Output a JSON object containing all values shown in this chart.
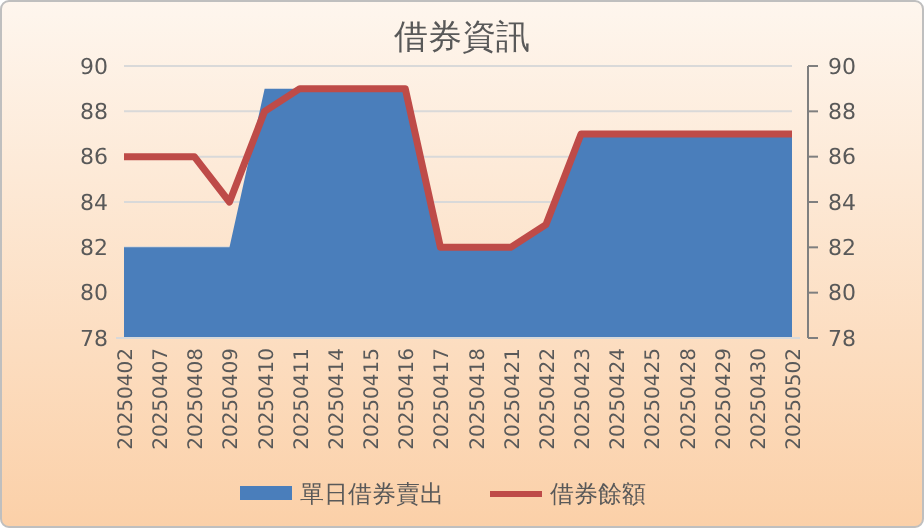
{
  "chart_data": {
    "type": "area",
    "title": "借券資訊",
    "categories": [
      "20250402",
      "20250407",
      "20250408",
      "20250409",
      "20250410",
      "20250411",
      "20250414",
      "20250415",
      "20250416",
      "20250417",
      "20250418",
      "20250421",
      "20250422",
      "20250423",
      "20250424",
      "20250425",
      "20250428",
      "20250429",
      "20250430",
      "20250502"
    ],
    "series": [
      {
        "name": "單日借券賣出",
        "color": "#4a7ebb",
        "values": [
          82,
          82,
          82,
          82,
          89,
          89,
          89,
          89,
          89,
          82,
          82,
          82,
          83,
          87,
          87,
          87,
          87,
          87,
          87,
          87
        ]
      },
      {
        "name": "借券餘額",
        "type": "line",
        "axis": "y2",
        "color": "#be4b48",
        "values": [
          86,
          86,
          86,
          84,
          88,
          89,
          89,
          89,
          89,
          82,
          82,
          82,
          83,
          87,
          87,
          87,
          87,
          87,
          87,
          87
        ]
      }
    ],
    "ylim": [
      78,
      90
    ],
    "yticks": [
      78,
      80,
      82,
      84,
      86,
      88,
      90
    ],
    "y2lim": [
      78,
      90
    ],
    "y2ticks": [
      78,
      80,
      82,
      84,
      86,
      88,
      90
    ],
    "grid": "y",
    "legend": "bottom",
    "marker": "none",
    "line_style": "solid"
  }
}
